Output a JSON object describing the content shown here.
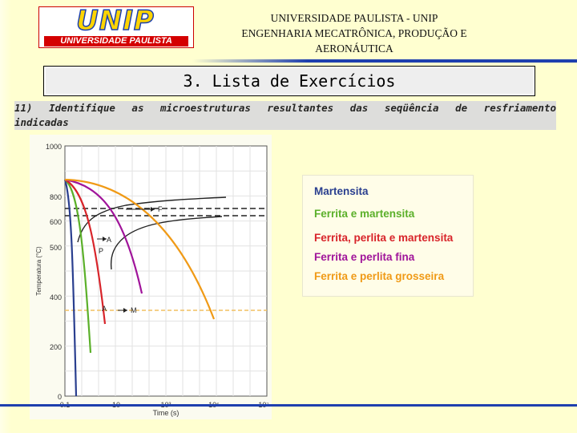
{
  "logo": {
    "word": "UNIP",
    "subtitle": "UNIVERSIDADE PAULISTA"
  },
  "header": {
    "line1": "UNIVERSIDADE PAULISTA - UNIP",
    "line2": "ENGENHARIA MECATRÔNICA, PRODUÇÃO E",
    "line3": "AERONÁUTICA"
  },
  "title": "3. Lista de Exercícios",
  "question": {
    "line1": "11) Identifique as microestruturas resultantes das seqüência de resfriamento",
    "line2": "indicadas"
  },
  "legend": {
    "items": [
      {
        "label": "Martensita",
        "color": "#2a3f8f"
      },
      {
        "label": "Ferrita e martensita",
        "color": "#5bb02a"
      },
      {
        "label": "Ferrita, perlita e martensita",
        "color": "#d8242a"
      },
      {
        "label": "Ferrita e perlita fina",
        "color": "#a0149a"
      },
      {
        "label": "Ferrita e perlita grosseira",
        "color": "#f09a16"
      }
    ]
  },
  "chart_data": {
    "type": "line",
    "ylabel": "Temperatura (°C)",
    "xlabel": "Time (s)",
    "y_ticks": [
      "1000",
      "800",
      "600",
      "500",
      "400",
      "200",
      "0"
    ],
    "x_ticks": [
      "0.1",
      "10",
      "10³",
      "10⁵",
      "10⁷"
    ],
    "region_labels": [
      "F",
      "A",
      "P",
      "A",
      "M"
    ],
    "series": [
      {
        "color": "#2a3f8f"
      },
      {
        "color": "#5bb02a"
      },
      {
        "color": "#d8242a"
      },
      {
        "color": "#a0149a"
      },
      {
        "color": "#f09a16"
      }
    ]
  }
}
